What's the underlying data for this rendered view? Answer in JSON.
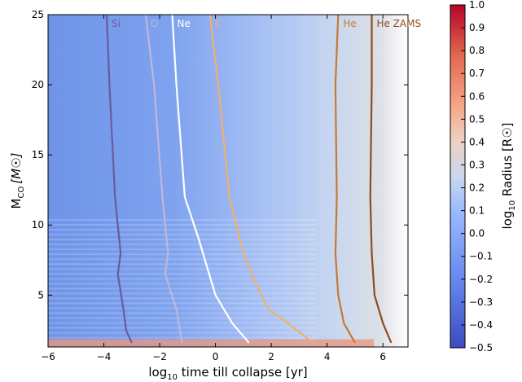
{
  "chart_data": {
    "type": "heatmap",
    "title": "",
    "xlabel": "log₁₀ time till collapse [yr]",
    "ylabel": "Mₙₒ [M☉]",
    "ylabel_main": "M",
    "ylabel_sub": "CO",
    "ylabel_unit": "[M☉]",
    "xlabel_pre": "log",
    "xlabel_sub": "10",
    "xlabel_post": " time till collapse [yr]",
    "xlim": [
      -6,
      6.9
    ],
    "ylim": [
      1.3,
      25
    ],
    "xticks": [
      -6,
      -4,
      -2,
      0,
      2,
      4,
      6
    ],
    "xtick_labels": [
      "−6",
      "−4",
      "−2",
      "0",
      "2",
      "4",
      "6"
    ],
    "yticks": [
      5,
      10,
      15,
      20,
      25
    ],
    "ytick_labels": [
      "5",
      "10",
      "15",
      "20",
      "25"
    ],
    "colorbar": {
      "label_pre": "log",
      "label_sub": "10",
      "label_post": " Radius [R☉]",
      "range": [
        -0.5,
        1.0
      ],
      "ticks": [
        -0.5,
        -0.4,
        -0.3,
        -0.2,
        -0.1,
        0.0,
        0.1,
        0.2,
        0.3,
        0.4,
        0.5,
        0.6,
        0.7,
        0.8,
        0.9,
        1.0
      ],
      "tick_labels": [
        "−0.5",
        "−0.4",
        "−0.3",
        "−0.2",
        "−0.1",
        "0.0",
        "0.1",
        "0.2",
        "0.3",
        "0.4",
        "0.5",
        "0.6",
        "0.7",
        "0.8",
        "0.9",
        "1.0"
      ],
      "colormap": "coolwarm"
    },
    "series": [
      {
        "name": "Si",
        "color": "#6a5aa0",
        "x": [
          -3.9,
          -3.8,
          -3.6,
          -3.4,
          -3.5,
          -3.3,
          -3.2,
          -3.0
        ],
        "y": [
          25,
          20,
          12,
          8,
          6.5,
          4,
          2.5,
          1.6
        ]
      },
      {
        "name": "O",
        "color": "#c2b5d8",
        "x": [
          -2.5,
          -2.2,
          -1.9,
          -1.7,
          -1.8,
          -1.4,
          -1.2
        ],
        "y": [
          25,
          20,
          12,
          8,
          6.5,
          4,
          1.6
        ]
      },
      {
        "name": "Ne",
        "color": "#ffffff",
        "x": [
          -1.55,
          -1.4,
          -1.1,
          -0.6,
          -0.3,
          0.0,
          0.6,
          1.2
        ],
        "y": [
          25,
          20,
          12,
          9,
          7,
          5,
          3,
          1.6
        ]
      },
      {
        "name": "C",
        "color": "#f0b070",
        "x": [
          -0.2,
          0.1,
          0.5,
          1.0,
          1.4,
          1.9,
          2.6,
          3.5
        ],
        "y": [
          25,
          20,
          12,
          8,
          6,
          4,
          3,
          1.6
        ]
      },
      {
        "name": "He",
        "color": "#c87830",
        "x": [
          4.4,
          4.3,
          4.35,
          4.3,
          4.4,
          4.6,
          5.0
        ],
        "y": [
          25,
          20,
          12,
          8,
          5,
          3,
          1.6
        ]
      },
      {
        "name": "He ZAMS",
        "color": "#8a4e1e",
        "x": [
          5.6,
          5.6,
          5.55,
          5.6,
          5.7,
          6.0,
          6.3
        ],
        "y": [
          25,
          20,
          12,
          8,
          5,
          3,
          1.6
        ]
      }
    ]
  }
}
